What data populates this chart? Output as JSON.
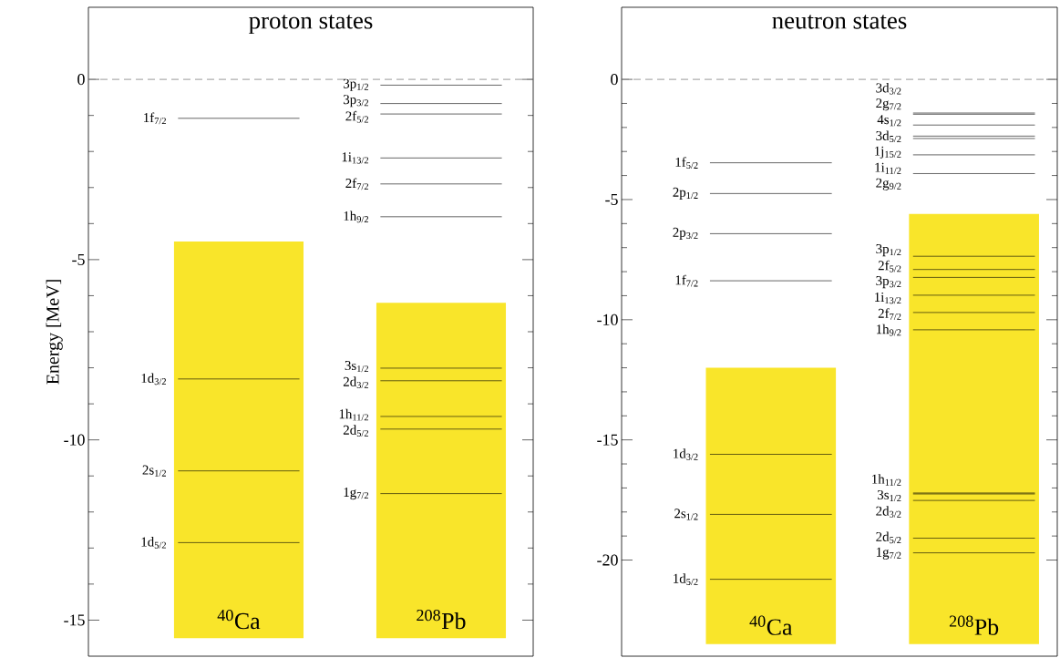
{
  "chart_data": [
    {
      "type": "bar",
      "title": "proton states",
      "ylabel": "Energy [MeV]",
      "categories": [
        "$^{40}$Ca",
        "$^{208}$Pb"
      ],
      "values": [
        11.0,
        9.3
      ],
      "base": [
        -15.5,
        -15.5
      ],
      "color": "#f9e52a",
      "ylim": [
        -16,
        2
      ],
      "yticks": [
        0,
        -5,
        -10,
        -15
      ],
      "tick_labels": "y",
      "ref_lines": [
        {
          "axis": "y",
          "value": -1.08,
          "label": "1f$_{7/2}$",
          "color": "#000000"
        },
        {
          "axis": "y",
          "value": -8.31,
          "label": "1d$_{3/2}$",
          "color": "#000000"
        },
        {
          "axis": "y",
          "value": -10.86,
          "label": "2s$_{1/2}$",
          "color": "#000000"
        },
        {
          "axis": "y",
          "value": -12.85,
          "label": "1d$_{5/2}$",
          "color": "#000000"
        },
        {
          "axis": "y",
          "value": 0,
          "color": "#808080",
          "line_style": "dashed"
        },
        {
          "axis": "y",
          "value": -0.16,
          "label": "3p$_{1/2}$",
          "color": "#000000"
        },
        {
          "axis": "y",
          "value": -0.67,
          "label": "3p$_{3/2}$",
          "color": "#000000"
        },
        {
          "axis": "y",
          "value": -0.96,
          "label": "2f$_{5/2}$",
          "color": "#000000"
        },
        {
          "axis": "y",
          "value": -2.18,
          "label": "1i$_{13/2}$",
          "color": "#000000"
        },
        {
          "axis": "y",
          "value": -2.9,
          "label": "2f$_{7/2}$",
          "color": "#000000"
        },
        {
          "axis": "y",
          "value": -3.81,
          "label": "1h$_{9/2}$",
          "color": "#000000"
        },
        {
          "axis": "y",
          "value": -8.01,
          "label": "3s$_{1/2}$",
          "color": "#000000"
        },
        {
          "axis": "y",
          "value": -8.36,
          "label": "2d$_{3/2}$",
          "color": "#000000"
        },
        {
          "axis": "y",
          "value": -9.35,
          "label": "1h$_{11/2}$",
          "color": "#000000"
        },
        {
          "axis": "y",
          "value": -9.7,
          "label": "2d$_{5/2}$",
          "color": "#000000"
        },
        {
          "axis": "y",
          "value": -11.49,
          "label": "1g$_{7/2}$",
          "color": "#000000"
        }
      ]
    },
    {
      "type": "bar",
      "title": "neutron states",
      "categories": [
        "$^{40}$Ca",
        "$^{208}$Pb"
      ],
      "values": [
        11.5,
        17.9
      ],
      "base": [
        -23.5,
        -23.5
      ],
      "color": "#f9e52a",
      "ylim": [
        -24,
        3
      ],
      "yticks": [
        0,
        -5,
        -10,
        -15,
        -20
      ],
      "tick_labels": "y",
      "ref_lines": [
        {
          "axis": "y",
          "value": -3.47,
          "label": "1f$_{5/2}$",
          "color": "#000000"
        },
        {
          "axis": "y",
          "value": -4.75,
          "label": "2p$_{1/2}$",
          "color": "#000000"
        },
        {
          "axis": "y",
          "value": -6.42,
          "label": "2p$_{3/2}$",
          "color": "#000000"
        },
        {
          "axis": "y",
          "value": -8.38,
          "label": "1f$_{7/2}$",
          "color": "#000000"
        },
        {
          "axis": "y",
          "value": -15.6,
          "label": "1d$_{3/2}$",
          "color": "#000000"
        },
        {
          "axis": "y",
          "value": -18.1,
          "label": "2s$_{1/2}$",
          "color": "#000000"
        },
        {
          "axis": "y",
          "value": -20.8,
          "label": "1d$_{5/2}$",
          "color": "#000000"
        },
        {
          "axis": "y",
          "value": 0,
          "color": "#808080",
          "line_style": "dashed"
        },
        {
          "axis": "y",
          "value": -1.4,
          "label": "3d$_{3/2}$",
          "color": "#000000"
        },
        {
          "axis": "y",
          "value": -1.45,
          "label": "2g$_{7/2}$",
          "color": "#000000"
        },
        {
          "axis": "y",
          "value": -1.9,
          "label": "4s$_{1/2}$",
          "color": "#000000"
        },
        {
          "axis": "y",
          "value": -2.36,
          "label": "3d$_{5/2}$",
          "color": "#000000"
        },
        {
          "axis": "y",
          "value": -2.46,
          "label": "1j$_{15/2}$",
          "color": "#000000"
        },
        {
          "axis": "y",
          "value": -3.14,
          "label": "1i$_{11/2}$",
          "color": "#000000"
        },
        {
          "axis": "y",
          "value": -3.92,
          "label": "2g$_{9/2}$",
          "color": "#000000"
        },
        {
          "axis": "y",
          "value": -7.36,
          "label": "3p$_{1/2}$",
          "color": "#000000"
        },
        {
          "axis": "y",
          "value": -7.91,
          "label": "2f$_{5/2}$",
          "color": "#000000"
        },
        {
          "axis": "y",
          "value": -8.24,
          "label": "3p$_{3/2}$",
          "color": "#000000"
        },
        {
          "axis": "y",
          "value": -8.98,
          "label": "1i$_{13/2}$",
          "color": "#000000"
        },
        {
          "axis": "y",
          "value": -9.7,
          "label": "2f$_{7/2}$",
          "color": "#000000"
        },
        {
          "axis": "y",
          "value": -10.42,
          "label": "1h$_{9/2}$",
          "color": "#000000"
        },
        {
          "axis": "y",
          "value": -17.21,
          "label": "1h$_{11/2}$",
          "color": "#000000"
        },
        {
          "axis": "y",
          "value": -17.25,
          "label": "3s$_{1/2}$",
          "color": "#000000"
        },
        {
          "axis": "y",
          "value": -17.52,
          "label": "2d$_{3/2}$",
          "color": "#000000"
        },
        {
          "axis": "y",
          "value": -19.09,
          "label": "2d$_{5/2}$",
          "color": "#000000"
        },
        {
          "axis": "y",
          "value": -19.7,
          "label": "1g$_{7/2}$",
          "color": "#000000"
        }
      ]
    }
  ]
}
